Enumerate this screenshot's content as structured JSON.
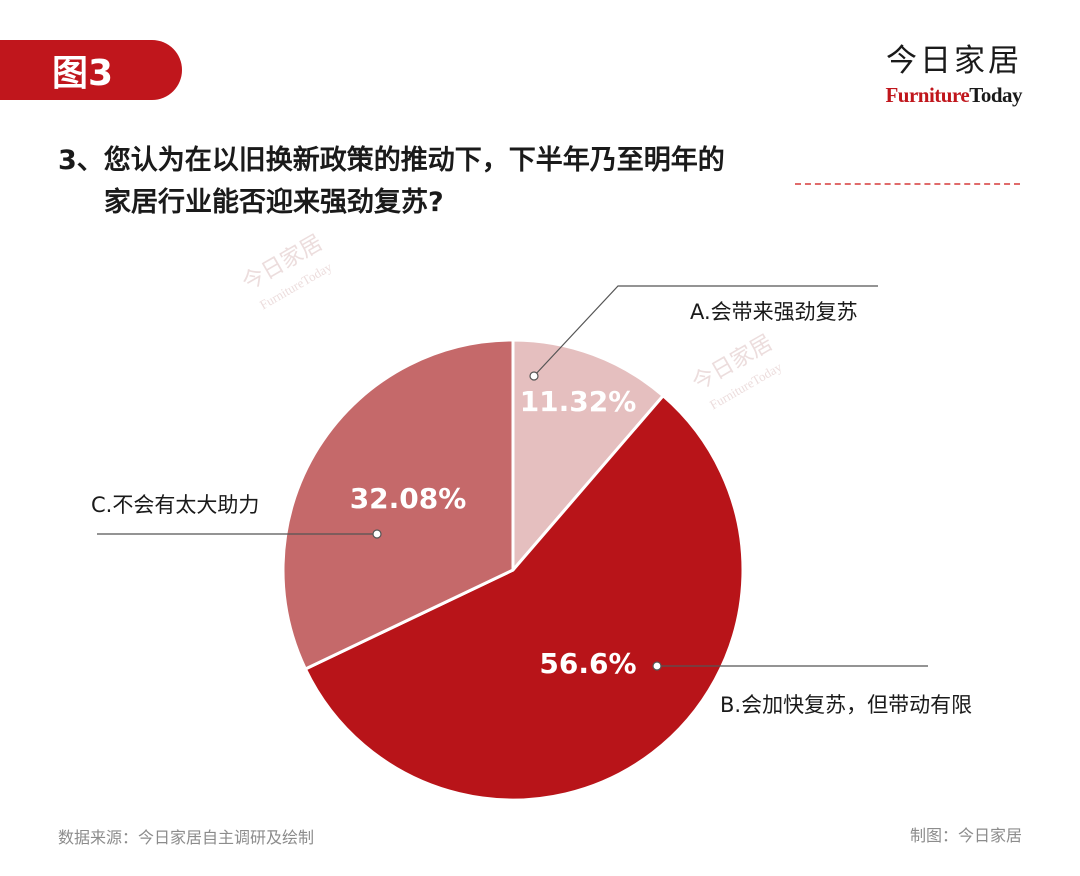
{
  "figure_tag": "图3",
  "brand": {
    "cn": "今日家居",
    "en_a": "Furniture",
    "en_b": "Today"
  },
  "question": {
    "line1": "3、您认为在以旧换新政策的推动下，下半年乃至明年的",
    "line2": "家居行业能否迎来强劲复苏?"
  },
  "footer": {
    "source": "数据来源：今日家居自主调研及绘制",
    "credit": "制图：今日家居"
  },
  "colors": {
    "accent": "#c0161c",
    "slice_a": "#e5bfbf",
    "slice_b": "#b81419",
    "slice_c": "#c5696a"
  },
  "chart_data": {
    "type": "pie",
    "slices": [
      {
        "label": "A.会带来强劲复苏",
        "value": 11.32,
        "value_label": "11.32%",
        "color": "#e5bfbf"
      },
      {
        "label": "B.会加快复苏，但带动有限",
        "value": 56.6,
        "value_label": "56.6%",
        "color": "#b81419"
      },
      {
        "label": "C.不会有太大助力",
        "value": 32.08,
        "value_label": "32.08%",
        "color": "#c5696a"
      }
    ],
    "start_angle": "12 o'clock",
    "direction": "clockwise"
  }
}
